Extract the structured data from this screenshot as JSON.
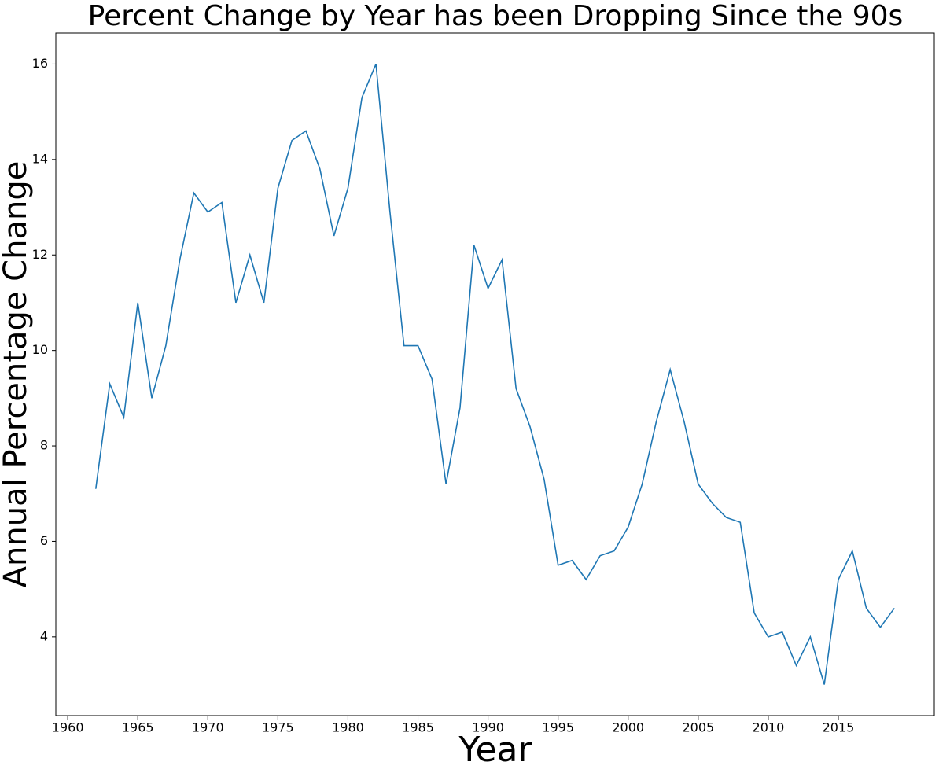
{
  "chart_data": {
    "type": "line",
    "title": "Percent Change by Year has been Dropping Since the 90s",
    "x_label": "Year",
    "y_label": "Annual Percentage Change",
    "x": [
      1962,
      1963,
      1964,
      1965,
      1966,
      1967,
      1968,
      1969,
      1970,
      1971,
      1972,
      1973,
      1974,
      1975,
      1976,
      1977,
      1978,
      1979,
      1980,
      1981,
      1982,
      1983,
      1984,
      1985,
      1986,
      1987,
      1988,
      1989,
      1990,
      1991,
      1992,
      1993,
      1994,
      1995,
      1996,
      1997,
      1998,
      1999,
      2000,
      2001,
      2002,
      2003,
      2004,
      2005,
      2006,
      2007,
      2008,
      2009,
      2010,
      2011,
      2012,
      2013,
      2014,
      2015,
      2016,
      2017,
      2018,
      2019
    ],
    "values": [
      7.1,
      9.3,
      8.6,
      11.0,
      9.0,
      10.1,
      11.9,
      13.3,
      12.9,
      13.1,
      11.0,
      12.0,
      11.0,
      13.4,
      14.4,
      14.6,
      13.8,
      12.4,
      13.4,
      15.3,
      16.0,
      12.9,
      10.1,
      10.1,
      9.4,
      7.2,
      8.8,
      12.2,
      11.3,
      11.9,
      9.2,
      8.4,
      7.3,
      5.5,
      5.6,
      5.2,
      5.7,
      5.8,
      6.3,
      7.2,
      8.5,
      9.6,
      8.5,
      7.2,
      6.8,
      6.5,
      6.4,
      4.5,
      4.0,
      4.1,
      3.4,
      4.0,
      3.0,
      5.2,
      5.8,
      4.6,
      4.2,
      4.6
    ],
    "color": "#1f77b4",
    "xlim": [
      1959.15,
      2021.85
    ],
    "xticks": [
      1960,
      1965,
      1970,
      1975,
      1980,
      1985,
      1990,
      1995,
      2000,
      2005,
      2010,
      2015
    ],
    "ylim": [
      2.35,
      16.65
    ],
    "yticks": [
      4,
      6,
      8,
      10,
      12,
      14,
      16
    ],
    "grid": false
  }
}
